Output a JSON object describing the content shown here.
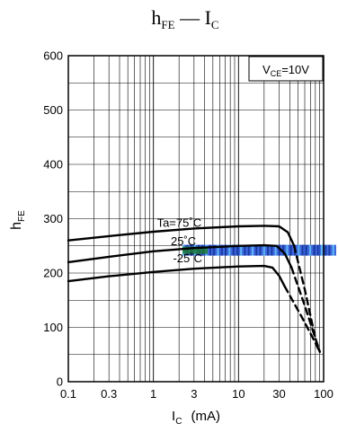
{
  "chart_data": {
    "type": "line",
    "title": {
      "main": "h",
      "main_sub": "FE",
      "sep": " — ",
      "x": "I",
      "x_sub": "C"
    },
    "xlabel": {
      "main": "I",
      "sub": "C",
      "unit": "(mA)"
    },
    "ylabel": {
      "main": "h",
      "sub": "FE"
    },
    "xscale": "log",
    "xlim": [
      0.1,
      100
    ],
    "ylim": [
      0,
      600
    ],
    "grid": true,
    "xticks": [
      {
        "value": 0.1,
        "label": "0.1"
      },
      {
        "value": 0.3,
        "label": "0.3"
      },
      {
        "value": 1,
        "label": "1"
      },
      {
        "value": 3,
        "label": "3"
      },
      {
        "value": 10,
        "label": "10"
      },
      {
        "value": 30,
        "label": "30"
      },
      {
        "value": 100,
        "label": "100"
      }
    ],
    "yticks": [
      {
        "value": 0,
        "label": "0"
      },
      {
        "value": 100,
        "label": "100"
      },
      {
        "value": 200,
        "label": "200"
      },
      {
        "value": 300,
        "label": "300"
      },
      {
        "value": 400,
        "label": "400"
      },
      {
        "value": 500,
        "label": "500"
      },
      {
        "value": 600,
        "label": "600"
      }
    ],
    "condition": {
      "main": "V",
      "sub": "CE",
      "value": "=10V",
      "placement": "top-right"
    },
    "series": [
      {
        "name": "Ta=75°C",
        "label": "Ta=75˚C",
        "solid": [
          [
            0.1,
            260
          ],
          [
            0.3,
            268
          ],
          [
            1,
            276
          ],
          [
            3,
            282
          ],
          [
            10,
            286
          ],
          [
            20,
            287
          ],
          [
            30,
            286
          ],
          [
            38,
            275
          ],
          [
            45,
            250
          ]
        ],
        "dashed": [
          [
            45,
            250
          ],
          [
            60,
            170
          ],
          [
            80,
            80
          ],
          [
            90,
            55
          ]
        ]
      },
      {
        "name": "25°C",
        "label": "25˚C",
        "solid": [
          [
            0.1,
            220
          ],
          [
            0.3,
            230
          ],
          [
            1,
            240
          ],
          [
            3,
            246
          ],
          [
            10,
            250
          ],
          [
            20,
            251
          ],
          [
            28,
            250
          ],
          [
            35,
            236
          ],
          [
            42,
            210
          ]
        ],
        "dashed": [
          [
            42,
            210
          ],
          [
            60,
            140
          ],
          [
            80,
            80
          ],
          [
            90,
            55
          ]
        ]
      },
      {
        "name": "-25°C",
        "label": "-25˚C",
        "solid": [
          [
            0.1,
            185
          ],
          [
            0.3,
            194
          ],
          [
            1,
            202
          ],
          [
            3,
            208
          ],
          [
            10,
            212
          ],
          [
            20,
            213
          ],
          [
            25,
            210
          ],
          [
            30,
            195
          ],
          [
            35,
            175
          ]
        ],
        "dashed": [
          [
            35,
            175
          ],
          [
            55,
            120
          ],
          [
            75,
            80
          ],
          [
            90,
            55
          ]
        ]
      }
    ],
    "artifact": {
      "band_y": 242,
      "x_from": 2.2,
      "x_to": 100,
      "color": "#1f4ed8"
    }
  }
}
